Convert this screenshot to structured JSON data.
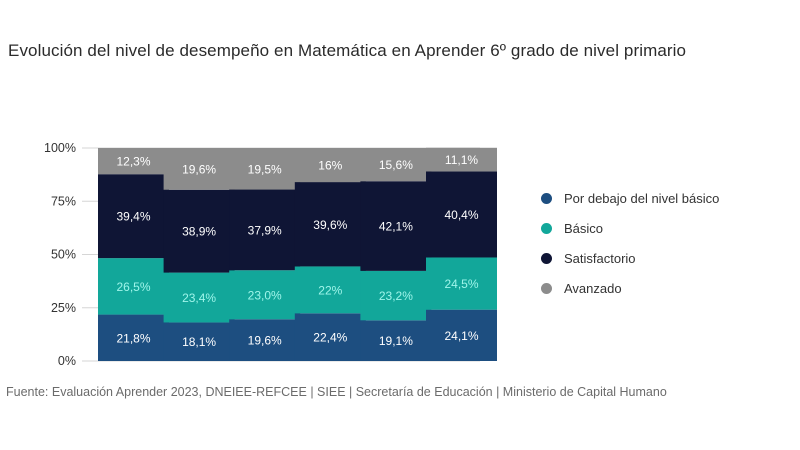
{
  "title": "Evolución del nivel de desempeño en Matemática en Aprender 6º grado de nivel primario",
  "source": "Fuente: Evaluación Aprender 2023, DNEIEE-REFCEE | SIEE | Secretaría de Educación | Ministerio de Capital Humano",
  "colors": {
    "below_basic": "#1d4e80",
    "basic": "#12a79a",
    "satisfactory": "#0f1535",
    "advanced": "#8c8c8c",
    "grid": "#d6d6d6",
    "axis_text": "#333333"
  },
  "chart_data": {
    "type": "bar",
    "stacked": true,
    "title": "Evolución del nivel de desempeño en Matemática en Aprender 6º grado de nivel primario",
    "categories": [
      "",
      "",
      "",
      "",
      "",
      ""
    ],
    "ylim": [
      0,
      100
    ],
    "yticks": [
      "0%",
      "25%",
      "50%",
      "75%",
      "100%"
    ],
    "ytick_values": [
      0,
      25,
      50,
      75,
      100
    ],
    "grid": true,
    "legend_position": "right",
    "series": [
      {
        "name": "Por debajo del nivel básico",
        "color": "#1d4e80",
        "label_color": "#ffffff",
        "values": [
          21.8,
          18.1,
          19.6,
          22.4,
          19.1,
          24.1
        ],
        "labels": [
          "21,8%",
          "18,1%",
          "19,6%",
          "22,4%",
          "19,1%",
          "24,1%"
        ]
      },
      {
        "name": "Básico",
        "color": "#12a79a",
        "label_color": "#9ff5ea",
        "values": [
          26.5,
          23.4,
          23.0,
          22.0,
          23.2,
          24.5
        ],
        "labels": [
          "26,5%",
          "23,4%",
          "23,0%",
          "22%",
          "23,2%",
          "24,5%"
        ]
      },
      {
        "name": "Satisfactorio",
        "color": "#0f1535",
        "label_color": "#ffffff",
        "values": [
          39.4,
          38.9,
          37.9,
          39.6,
          42.1,
          40.4
        ],
        "labels": [
          "39,4%",
          "38,9%",
          "37,9%",
          "39,6%",
          "42,1%",
          "40,4%"
        ]
      },
      {
        "name": "Avanzado",
        "color": "#8c8c8c",
        "label_color": "#ffffff",
        "values": [
          12.3,
          19.6,
          19.5,
          16.0,
          15.6,
          11.1
        ],
        "labels": [
          "12,3%",
          "19,6%",
          "19,5%",
          "16%",
          "15,6%",
          "11,1%"
        ]
      }
    ]
  },
  "legend": [
    {
      "label": "Por debajo del nivel básico",
      "color": "#1d4e80"
    },
    {
      "label": "Básico",
      "color": "#12a79a"
    },
    {
      "label": "Satisfactorio",
      "color": "#0f1535"
    },
    {
      "label": "Avanzado",
      "color": "#8c8c8c"
    }
  ]
}
